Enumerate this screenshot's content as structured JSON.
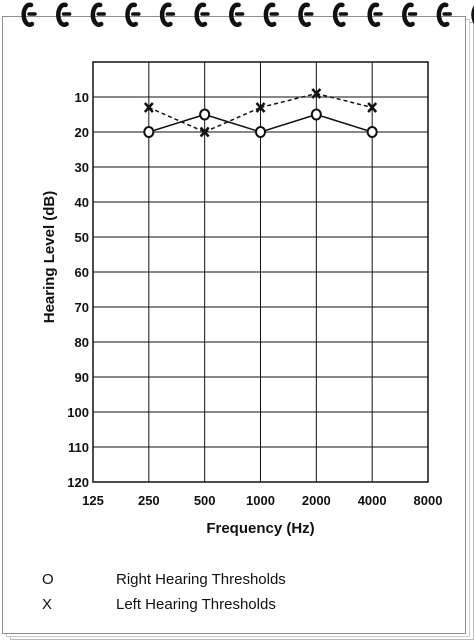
{
  "chart_data": {
    "type": "line",
    "title": "",
    "xlabel": "Frequency (Hz)",
    "ylabel": "Hearing Level (dB)",
    "x_ticks": [
      "125",
      "250",
      "500",
      "1000",
      "2000",
      "4000",
      "8000"
    ],
    "y_ticks": [
      "10",
      "20",
      "30",
      "40",
      "50",
      "60",
      "70",
      "80",
      "90",
      "100",
      "110",
      "120"
    ],
    "ylim": [
      0,
      120
    ],
    "y_inverted": true,
    "grid": true,
    "series": [
      {
        "name": "Right Hearing Thresholds",
        "marker": "O",
        "line_style": "solid",
        "x": [
          "250",
          "500",
          "1000",
          "2000",
          "4000"
        ],
        "values": [
          20,
          15,
          20,
          15,
          20
        ]
      },
      {
        "name": "Left Hearing Thresholds",
        "marker": "X",
        "line_style": "dashed",
        "x": [
          "250",
          "500",
          "1000",
          "2000",
          "4000"
        ],
        "values": [
          13,
          20,
          13,
          9,
          13
        ]
      }
    ],
    "legend": [
      {
        "symbol": "O",
        "label": "Right Hearing Thresholds"
      },
      {
        "symbol": "X",
        "label": "Left Hearing Thresholds"
      }
    ],
    "legend_position": "bottom-left"
  }
}
